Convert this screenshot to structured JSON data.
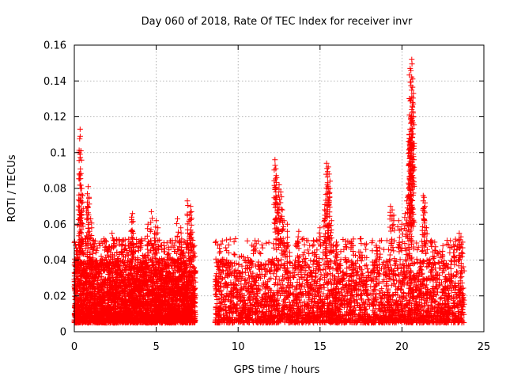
{
  "chart_data": {
    "type": "scatter",
    "title": "Day 060 of 2018, Rate Of TEC Index for receiver invr",
    "xlabel": "GPS time / hours",
    "ylabel": "ROTI / TECUs",
    "xlim": [
      0,
      25
    ],
    "ylim": [
      0,
      0.16
    ],
    "xticks": [
      0,
      5,
      10,
      15,
      20,
      25
    ],
    "xtick_labels": [
      "0",
      "5",
      "10",
      "15",
      "20",
      "25"
    ],
    "yticks": [
      0,
      0.02,
      0.04,
      0.06,
      0.08,
      0.1,
      0.12,
      0.14,
      0.16
    ],
    "ytick_labels": [
      "0",
      "0.02",
      "0.04",
      "0.06",
      "0.08",
      "0.1",
      "0.12",
      "0.14",
      "0.16"
    ],
    "grid": true,
    "marker": "+",
    "color": "#ff0000",
    "coverage_segments": [
      [
        0.0,
        7.4
      ],
      [
        8.6,
        23.8
      ]
    ],
    "baseline_band": [
      0.005,
      0.04
    ],
    "series": [
      {
        "name": "ROTI",
        "x": [
          0.2,
          0.35,
          0.4,
          0.3,
          0.45,
          0.5,
          0.25,
          0.4,
          0.8,
          0.85,
          0.9,
          1.0,
          0.7,
          2.3,
          2.6,
          3.5,
          3.55,
          3.6,
          4.5,
          4.7,
          5.0,
          5.1,
          4.9,
          6.3,
          6.5,
          6.9,
          7.05,
          7.1,
          7.15,
          12.25,
          12.3,
          12.35,
          12.5,
          12.6,
          12.4,
          12.7,
          12.8,
          13.0,
          13.7,
          14.0,
          15.0,
          15.3,
          15.4,
          15.5,
          15.55,
          15.6,
          15.45,
          15.3,
          15.7,
          16.0,
          17.0,
          17.5,
          18.5,
          19.3,
          19.4,
          19.5,
          19.8,
          20.0,
          20.2,
          20.3,
          20.4,
          20.45,
          20.5,
          20.55,
          20.6,
          20.65,
          20.7,
          20.5,
          20.6,
          20.45,
          20.55,
          21.3,
          21.35,
          21.4,
          21.5,
          22.0,
          22.5,
          23.2,
          23.5,
          23.6,
          23.7
        ],
        "y": [
          0.045,
          0.113,
          0.101,
          0.088,
          0.08,
          0.076,
          0.068,
          0.06,
          0.07,
          0.081,
          0.075,
          0.063,
          0.052,
          0.055,
          0.051,
          0.064,
          0.066,
          0.055,
          0.06,
          0.067,
          0.062,
          0.058,
          0.055,
          0.063,
          0.058,
          0.073,
          0.065,
          0.07,
          0.067,
          0.096,
          0.091,
          0.086,
          0.082,
          0.078,
          0.071,
          0.068,
          0.062,
          0.06,
          0.056,
          0.052,
          0.058,
          0.065,
          0.094,
          0.092,
          0.088,
          0.08,
          0.077,
          0.071,
          0.062,
          0.05,
          0.048,
          0.052,
          0.045,
          0.07,
          0.068,
          0.065,
          0.062,
          0.06,
          0.066,
          0.073,
          0.083,
          0.11,
          0.113,
          0.119,
          0.124,
          0.128,
          0.133,
          0.147,
          0.152,
          0.108,
          0.101,
          0.076,
          0.075,
          0.07,
          0.058,
          0.05,
          0.048,
          0.046,
          0.055,
          0.053,
          0.05
        ]
      }
    ]
  }
}
